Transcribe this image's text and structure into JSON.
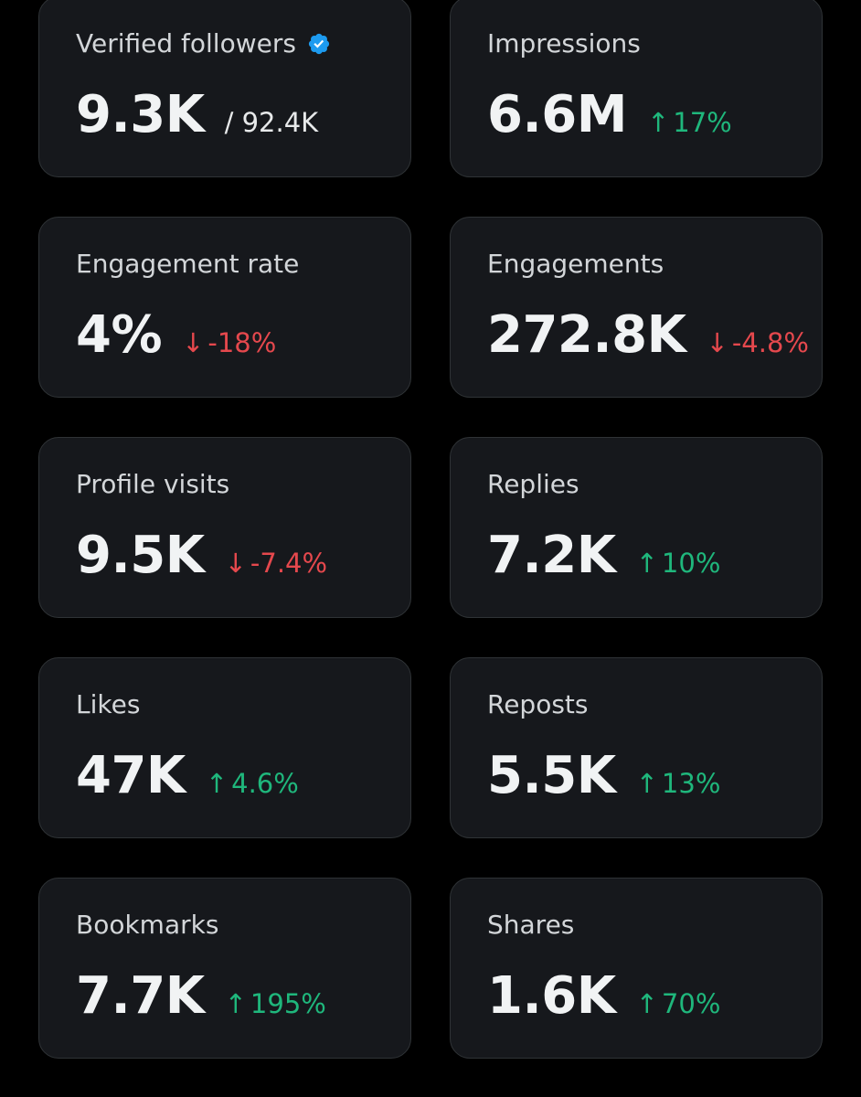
{
  "colors": {
    "background": "#000000",
    "card_bg": "#16181c",
    "card_border": "#2f3336",
    "positive": "#1fb77c",
    "negative": "#e5484d",
    "verified_badge": "#1d9bf0"
  },
  "metrics": [
    {
      "label": "Verified followers",
      "value": "9.3K",
      "total": "/ 92.4K",
      "badge_icon": "verified-badge-icon"
    },
    {
      "label": "Impressions",
      "value": "6.6M",
      "arrow": "↑",
      "change": "17%",
      "trend": "up"
    },
    {
      "label": "Engagement rate",
      "value": "4%",
      "arrow": "↓",
      "change": "-18%",
      "trend": "down"
    },
    {
      "label": "Engagements",
      "value": "272.8K",
      "arrow": "↓",
      "change": "-4.8%",
      "trend": "down"
    },
    {
      "label": "Profile visits",
      "value": "9.5K",
      "arrow": "↓",
      "change": "-7.4%",
      "trend": "down"
    },
    {
      "label": "Replies",
      "value": "7.2K",
      "arrow": "↑",
      "change": "10%",
      "trend": "up"
    },
    {
      "label": "Likes",
      "value": "47K",
      "arrow": "↑",
      "change": "4.6%",
      "trend": "up"
    },
    {
      "label": "Reposts",
      "value": "5.5K",
      "arrow": "↑",
      "change": "13%",
      "trend": "up"
    },
    {
      "label": "Bookmarks",
      "value": "7.7K",
      "arrow": "↑",
      "change": "195%",
      "trend": "up"
    },
    {
      "label": "Shares",
      "value": "1.6K",
      "arrow": "↑",
      "change": "70%",
      "trend": "up"
    }
  ]
}
